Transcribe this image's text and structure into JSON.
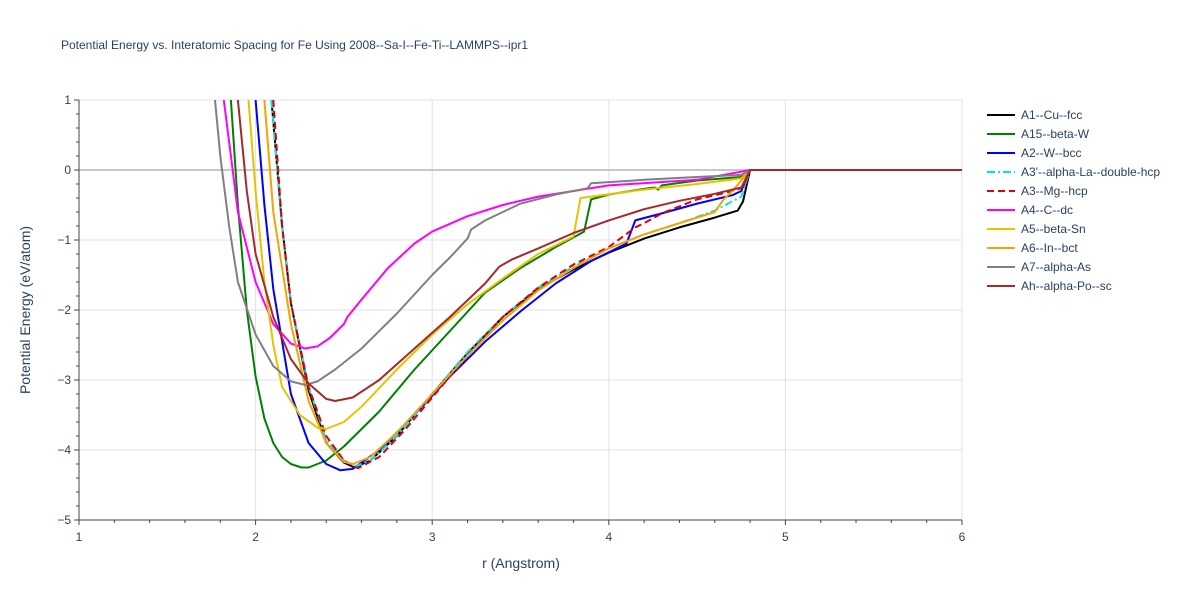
{
  "chart_data": {
    "type": "line",
    "title": "Potential Energy vs. Interatomic Spacing for Fe Using 2008--Sa-I--Fe-Ti--LAMMPS--ipr1",
    "xlabel": "r (Angstrom)",
    "ylabel": "Potential Energy (eV/atom)",
    "xlim": [
      1,
      6
    ],
    "ylim": [
      -5,
      1
    ],
    "x_ticks": [
      1,
      2,
      3,
      4,
      5,
      6
    ],
    "x_tick_labels": [
      "1",
      "2",
      "3",
      "4",
      "5",
      "6"
    ],
    "y_ticks": [
      1,
      0,
      -1,
      -2,
      -3,
      -4,
      -5
    ],
    "y_tick_labels": [
      "1",
      "0",
      "−1",
      "−2",
      "−3",
      "−4",
      "−5"
    ],
    "grid": true,
    "legend_position": "right",
    "series": [
      {
        "name": "A1--Cu--fcc",
        "color": "#000000",
        "dash": "solid",
        "points": [
          [
            2.09,
            1.0
          ],
          [
            2.15,
            -0.8
          ],
          [
            2.2,
            -1.9
          ],
          [
            2.3,
            -3.15
          ],
          [
            2.4,
            -3.9
          ],
          [
            2.5,
            -4.18
          ],
          [
            2.56,
            -4.25
          ],
          [
            2.65,
            -4.15
          ],
          [
            2.8,
            -3.8
          ],
          [
            3.0,
            -3.2
          ],
          [
            3.2,
            -2.62
          ],
          [
            3.4,
            -2.1
          ],
          [
            3.6,
            -1.7
          ],
          [
            3.8,
            -1.42
          ],
          [
            4.0,
            -1.18
          ],
          [
            4.2,
            -0.98
          ],
          [
            4.4,
            -0.82
          ],
          [
            4.6,
            -0.68
          ],
          [
            4.73,
            -0.58
          ],
          [
            4.76,
            -0.45
          ],
          [
            4.8,
            0.0
          ],
          [
            6.0,
            0.0
          ]
        ]
      },
      {
        "name": "A15--beta-W",
        "color": "#008000",
        "dash": "solid",
        "points": [
          [
            1.86,
            1.0
          ],
          [
            1.9,
            -0.5
          ],
          [
            1.95,
            -2.0
          ],
          [
            2.0,
            -2.95
          ],
          [
            2.05,
            -3.55
          ],
          [
            2.1,
            -3.9
          ],
          [
            2.15,
            -4.1
          ],
          [
            2.2,
            -4.2
          ],
          [
            2.26,
            -4.25
          ],
          [
            2.3,
            -4.25
          ],
          [
            2.4,
            -4.15
          ],
          [
            2.5,
            -3.95
          ],
          [
            2.7,
            -3.45
          ],
          [
            2.9,
            -2.85
          ],
          [
            3.1,
            -2.3
          ],
          [
            3.3,
            -1.75
          ],
          [
            3.5,
            -1.4
          ],
          [
            3.7,
            -1.1
          ],
          [
            3.86,
            -0.88
          ],
          [
            3.9,
            -0.42
          ],
          [
            4.0,
            -0.35
          ],
          [
            4.2,
            -0.27
          ],
          [
            4.26,
            -0.25
          ],
          [
            4.28,
            -0.28
          ],
          [
            4.3,
            -0.22
          ],
          [
            4.5,
            -0.15
          ],
          [
            4.75,
            -0.1
          ],
          [
            4.8,
            0.0
          ],
          [
            6.0,
            0.0
          ]
        ]
      },
      {
        "name": "A2--W--bcc",
        "color": "#0000ff",
        "dash": "solid",
        "points": [
          [
            2.0,
            1.0
          ],
          [
            2.05,
            -0.5
          ],
          [
            2.1,
            -1.7
          ],
          [
            2.2,
            -3.2
          ],
          [
            2.3,
            -3.9
          ],
          [
            2.4,
            -4.2
          ],
          [
            2.48,
            -4.29
          ],
          [
            2.55,
            -4.27
          ],
          [
            2.7,
            -4.0
          ],
          [
            2.9,
            -3.5
          ],
          [
            3.1,
            -2.95
          ],
          [
            3.3,
            -2.45
          ],
          [
            3.5,
            -2.02
          ],
          [
            3.7,
            -1.62
          ],
          [
            3.9,
            -1.3
          ],
          [
            4.1,
            -1.05
          ],
          [
            4.15,
            -0.72
          ],
          [
            4.3,
            -0.62
          ],
          [
            4.5,
            -0.48
          ],
          [
            4.7,
            -0.36
          ],
          [
            4.75,
            -0.3
          ],
          [
            4.8,
            0.0
          ],
          [
            6.0,
            0.0
          ]
        ]
      },
      {
        "name": "A3'--alpha-La--double-hcp",
        "color": "#00e5ee",
        "dash": "dashdot",
        "points": [
          [
            2.09,
            1.0
          ],
          [
            2.15,
            -0.8
          ],
          [
            2.2,
            -1.9
          ],
          [
            2.3,
            -3.1
          ],
          [
            2.4,
            -3.85
          ],
          [
            2.5,
            -4.15
          ],
          [
            2.57,
            -4.23
          ],
          [
            2.65,
            -4.15
          ],
          [
            2.8,
            -3.8
          ],
          [
            3.0,
            -3.2
          ],
          [
            3.2,
            -2.6
          ],
          [
            3.4,
            -2.1
          ],
          [
            3.6,
            -1.68
          ],
          [
            3.8,
            -1.38
          ],
          [
            4.0,
            -1.12
          ],
          [
            4.2,
            -0.92
          ],
          [
            4.4,
            -0.76
          ],
          [
            4.6,
            -0.58
          ],
          [
            4.75,
            -0.38
          ],
          [
            4.8,
            0.0
          ],
          [
            6.0,
            0.0
          ]
        ]
      },
      {
        "name": "A3--Mg--hcp",
        "color": "#e00000",
        "dash": "dash",
        "points": [
          [
            2.1,
            1.0
          ],
          [
            2.15,
            -0.8
          ],
          [
            2.2,
            -1.9
          ],
          [
            2.3,
            -3.1
          ],
          [
            2.4,
            -3.8
          ],
          [
            2.5,
            -4.15
          ],
          [
            2.58,
            -4.26
          ],
          [
            2.7,
            -4.1
          ],
          [
            2.85,
            -3.7
          ],
          [
            3.0,
            -3.25
          ],
          [
            3.2,
            -2.65
          ],
          [
            3.4,
            -2.1
          ],
          [
            3.6,
            -1.68
          ],
          [
            3.8,
            -1.35
          ],
          [
            4.0,
            -1.1
          ],
          [
            4.15,
            -0.82
          ],
          [
            4.2,
            -0.76
          ],
          [
            4.3,
            -0.62
          ],
          [
            4.5,
            -0.42
          ],
          [
            4.7,
            -0.3
          ],
          [
            4.76,
            -0.25
          ],
          [
            4.8,
            0.0
          ],
          [
            6.0,
            0.0
          ]
        ]
      },
      {
        "name": "A4--C--dc",
        "color": "#ff00ff",
        "dash": "solid",
        "points": [
          [
            1.82,
            1.0
          ],
          [
            1.86,
            0.2
          ],
          [
            1.9,
            -0.6
          ],
          [
            2.0,
            -1.6
          ],
          [
            2.1,
            -2.2
          ],
          [
            2.2,
            -2.48
          ],
          [
            2.28,
            -2.55
          ],
          [
            2.35,
            -2.52
          ],
          [
            2.42,
            -2.4
          ],
          [
            2.5,
            -2.2
          ],
          [
            2.52,
            -2.1
          ],
          [
            2.6,
            -1.85
          ],
          [
            2.75,
            -1.4
          ],
          [
            2.9,
            -1.05
          ],
          [
            3.0,
            -0.88
          ],
          [
            3.2,
            -0.66
          ],
          [
            3.4,
            -0.5
          ],
          [
            3.6,
            -0.38
          ],
          [
            3.8,
            -0.3
          ],
          [
            4.0,
            -0.22
          ],
          [
            4.5,
            -0.14
          ],
          [
            4.8,
            0.0
          ],
          [
            6.0,
            0.0
          ]
        ]
      },
      {
        "name": "A5--beta-Sn",
        "color": "#e6c300",
        "dash": "solid",
        "points": [
          [
            1.96,
            1.0
          ],
          [
            2.0,
            -0.3
          ],
          [
            2.05,
            -1.6
          ],
          [
            2.1,
            -2.5
          ],
          [
            2.15,
            -3.1
          ],
          [
            2.25,
            -3.5
          ],
          [
            2.35,
            -3.68
          ],
          [
            2.4,
            -3.7
          ],
          [
            2.5,
            -3.6
          ],
          [
            2.6,
            -3.38
          ],
          [
            2.8,
            -2.85
          ],
          [
            3.0,
            -2.35
          ],
          [
            3.2,
            -1.92
          ],
          [
            3.4,
            -1.55
          ],
          [
            3.6,
            -1.2
          ],
          [
            3.8,
            -0.95
          ],
          [
            3.84,
            -0.4
          ],
          [
            3.9,
            -0.38
          ],
          [
            4.2,
            -0.28
          ],
          [
            4.5,
            -0.2
          ],
          [
            4.75,
            -0.12
          ],
          [
            4.8,
            0.0
          ],
          [
            6.0,
            0.0
          ]
        ]
      },
      {
        "name": "A6--In--bct",
        "color": "#f5a300",
        "dash": "solid",
        "points": [
          [
            2.05,
            1.0
          ],
          [
            2.1,
            -0.6
          ],
          [
            2.2,
            -2.2
          ],
          [
            2.3,
            -3.3
          ],
          [
            2.4,
            -3.9
          ],
          [
            2.5,
            -4.17
          ],
          [
            2.55,
            -4.2
          ],
          [
            2.65,
            -4.1
          ],
          [
            2.8,
            -3.75
          ],
          [
            3.0,
            -3.2
          ],
          [
            3.2,
            -2.65
          ],
          [
            3.4,
            -2.15
          ],
          [
            3.6,
            -1.72
          ],
          [
            3.8,
            -1.4
          ],
          [
            4.0,
            -1.12
          ],
          [
            4.2,
            -0.92
          ],
          [
            4.4,
            -0.76
          ],
          [
            4.6,
            -0.6
          ],
          [
            4.65,
            -0.42
          ],
          [
            4.7,
            -0.3
          ],
          [
            4.8,
            0.0
          ],
          [
            6.0,
            0.0
          ]
        ]
      },
      {
        "name": "A7--alpha-As",
        "color": "#808080",
        "dash": "solid",
        "points": [
          [
            1.77,
            1.0
          ],
          [
            1.8,
            0.2
          ],
          [
            1.85,
            -0.8
          ],
          [
            1.9,
            -1.6
          ],
          [
            2.0,
            -2.35
          ],
          [
            2.1,
            -2.8
          ],
          [
            2.2,
            -3.02
          ],
          [
            2.28,
            -3.07
          ],
          [
            2.35,
            -3.02
          ],
          [
            2.45,
            -2.85
          ],
          [
            2.6,
            -2.55
          ],
          [
            2.8,
            -2.05
          ],
          [
            3.0,
            -1.5
          ],
          [
            3.1,
            -1.25
          ],
          [
            3.2,
            -0.98
          ],
          [
            3.22,
            -0.85
          ],
          [
            3.3,
            -0.72
          ],
          [
            3.5,
            -0.48
          ],
          [
            3.7,
            -0.35
          ],
          [
            3.88,
            -0.26
          ],
          [
            3.9,
            -0.19
          ],
          [
            4.2,
            -0.14
          ],
          [
            4.5,
            -0.1
          ],
          [
            4.75,
            -0.07
          ],
          [
            4.8,
            0.0
          ],
          [
            6.0,
            0.0
          ]
        ]
      },
      {
        "name": "Ah--alpha-Po--sc",
        "color": "#a52a2a",
        "dash": "solid",
        "points": [
          [
            1.9,
            1.0
          ],
          [
            1.95,
            -0.3
          ],
          [
            2.0,
            -1.2
          ],
          [
            2.1,
            -2.1
          ],
          [
            2.2,
            -2.7
          ],
          [
            2.3,
            -3.05
          ],
          [
            2.4,
            -3.27
          ],
          [
            2.45,
            -3.3
          ],
          [
            2.55,
            -3.25
          ],
          [
            2.7,
            -3.0
          ],
          [
            2.9,
            -2.55
          ],
          [
            3.1,
            -2.1
          ],
          [
            3.3,
            -1.62
          ],
          [
            3.38,
            -1.38
          ],
          [
            3.45,
            -1.28
          ],
          [
            3.6,
            -1.12
          ],
          [
            3.8,
            -0.9
          ],
          [
            4.0,
            -0.72
          ],
          [
            4.2,
            -0.56
          ],
          [
            4.4,
            -0.44
          ],
          [
            4.6,
            -0.34
          ],
          [
            4.75,
            -0.25
          ],
          [
            4.8,
            0.0
          ],
          [
            6.0,
            0.0
          ]
        ]
      }
    ]
  }
}
